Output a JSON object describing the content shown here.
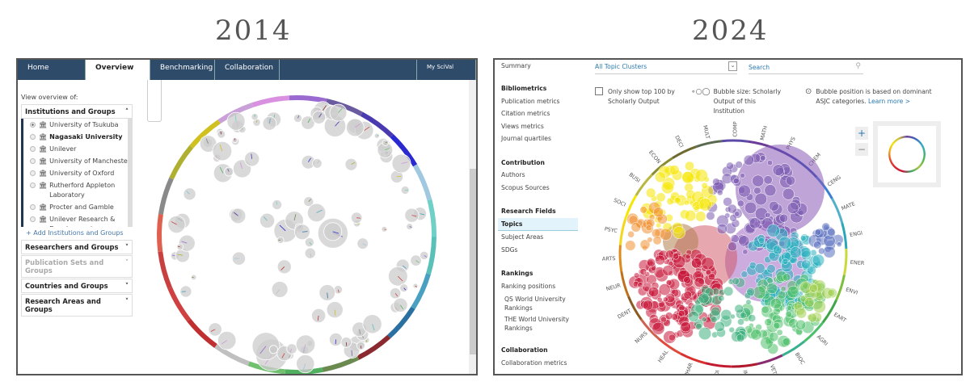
{
  "titles": {
    "left": "2014",
    "right": "2024"
  },
  "v2014": {
    "tabs": [
      "Home",
      "Overview",
      "Benchmarking",
      "Collaboration",
      "",
      "My SciVal"
    ],
    "active_tab": "Overview",
    "view_label": "View overview of:",
    "sections": [
      {
        "label": "Institutions and Groups",
        "expanded": true
      },
      {
        "label": "Researchers and Groups"
      },
      {
        "label": "Publication Sets and Groups",
        "disabled": true
      },
      {
        "label": "Countries and Groups"
      },
      {
        "label": "Research Areas and Groups"
      }
    ],
    "institutions": [
      "University of Tsukuba",
      "Nagasaki University",
      "Unilever",
      "University of Manchester",
      "University of Oxford",
      "Rutherford Appleton Laboratory",
      "Procter and Gamble",
      "Unilever Research & Development"
    ],
    "selected_institution": "University of Tsukuba",
    "add_link": "+ Add Institutions and Groups"
  },
  "v2024": {
    "summary": "Summary",
    "dropdown": "All Topic Clusters",
    "search_placeholder": "Search",
    "sidebar": [
      {
        "heading": "Bibliometrics",
        "items": [
          "Publication metrics",
          "Citation metrics",
          "Views metrics",
          "Journal quartiles"
        ]
      },
      {
        "heading": "Contribution",
        "items": [
          "Authors",
          "Scopus Sources"
        ]
      },
      {
        "heading": "Research Fields",
        "items": [
          "Topics",
          "Subject Areas",
          "SDGs"
        ]
      },
      {
        "heading": "Rankings",
        "items": [
          "Ranking positions",
          "QS World University Rankings",
          "THE World University Rankings"
        ]
      },
      {
        "heading": "Collaboration",
        "items": [
          "Collaboration metrics"
        ]
      }
    ],
    "selected": "Topics",
    "options": {
      "top100": "Only show top 100 by Scholarly Output",
      "bubble_size": "Bubble size: Scholarly Output of this Institution",
      "bubble_position": "Bubble position is based on dominant ASJC categories.",
      "learn_more": "Learn more >"
    },
    "zoom_in": "+",
    "zoom_out": "−",
    "ring_labels": [
      "COMP",
      "MATH",
      "PHYS",
      "CHEM",
      "CENG",
      "MATE",
      "ENGI",
      "ENER",
      "ENVI",
      "EART",
      "AGRI",
      "BIOC",
      "VETE",
      "IMMU",
      "MEDI",
      "PHAR",
      "HEAL",
      "NURS",
      "DENT",
      "NEUR",
      "ARTS",
      "PSYC",
      "SOCI",
      "BUSI",
      "ECON",
      "DECI",
      "MULT"
    ]
  }
}
